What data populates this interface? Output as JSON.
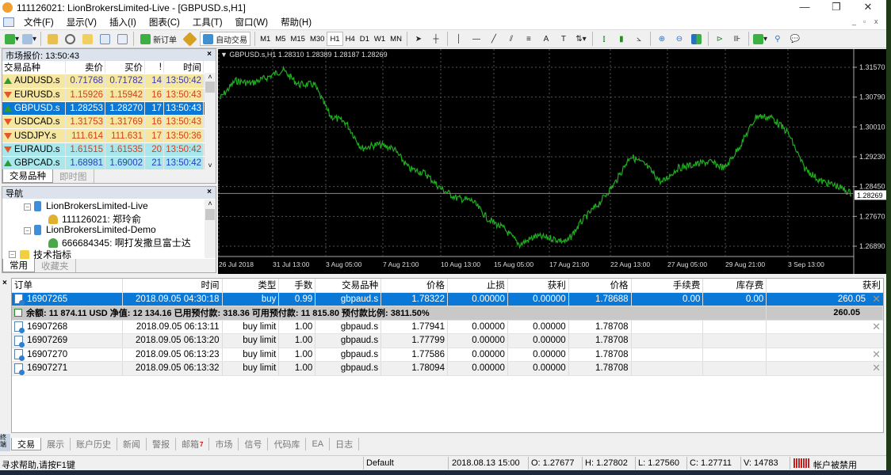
{
  "window": {
    "title": "111126021: LionBrokersLimited-Live - [GBPUSD.s,H1]",
    "controls": [
      "—",
      "❐",
      "✕"
    ]
  },
  "menu": [
    "文件(F)",
    "显示(V)",
    "插入(I)",
    "图表(C)",
    "工具(T)",
    "窗口(W)",
    "帮助(H)"
  ],
  "toolbar": {
    "new_order": "新订单",
    "auto_trading": "自动交易",
    "timeframes": [
      "M1",
      "M5",
      "M15",
      "M30",
      "H1",
      "H4",
      "D1",
      "W1",
      "MN"
    ],
    "active_timeframe": "H1"
  },
  "market_watch": {
    "title": "市场报价: 13:50:43",
    "columns": [
      "交易品种",
      "卖价",
      "买价",
      "!",
      "时间"
    ],
    "rows": [
      {
        "symbol": "AUDUSD.s",
        "bid": "0.71768",
        "ask": "0.71782",
        "spread": "14",
        "time": "13:50:42",
        "dir": "up",
        "bg": "#f5e6a0",
        "color": "#3a3aa8"
      },
      {
        "symbol": "EURUSD.s",
        "bid": "1.15926",
        "ask": "1.15942",
        "spread": "16",
        "time": "13:50:43",
        "dir": "down",
        "bg": "#f5e6a0",
        "color": "#d04020"
      },
      {
        "symbol": "GBPUSD.s",
        "bid": "1.28253",
        "ask": "1.28270",
        "spread": "17",
        "time": "13:50:43",
        "dir": "up",
        "bg": "#0a78d6",
        "color": "#ffffff"
      },
      {
        "symbol": "USDCAD.s",
        "bid": "1.31753",
        "ask": "1.31769",
        "spread": "16",
        "time": "13:50:43",
        "dir": "down",
        "bg": "#f5e6a0",
        "color": "#d04020"
      },
      {
        "symbol": "USDJPY.s",
        "bid": "111.614",
        "ask": "111.631",
        "spread": "17",
        "time": "13:50:36",
        "dir": "down",
        "bg": "#f5e6a0",
        "color": "#d04020"
      },
      {
        "symbol": "EURAUD.s",
        "bid": "1.61515",
        "ask": "1.61535",
        "spread": "20",
        "time": "13:50:42",
        "dir": "down",
        "bg": "#a8e8ec",
        "color": "#d04020"
      },
      {
        "symbol": "GBPCAD.s",
        "bid": "1.68981",
        "ask": "1.69002",
        "spread": "21",
        "time": "13:50:42",
        "dir": "up",
        "bg": "#a8e8ec",
        "color": "#2a3ac0"
      }
    ],
    "tabs": [
      "交易品种",
      "即时图"
    ]
  },
  "navigator": {
    "title": "导航",
    "items": [
      {
        "label": "LionBrokersLimited-Live",
        "type": "server"
      },
      {
        "label": "111126021: 郑玲俞",
        "type": "account"
      },
      {
        "label": "LionBrokersLimited-Demo",
        "type": "server"
      },
      {
        "label": "666684345: 啊打发撒旦富士达",
        "type": "account-demo"
      },
      {
        "label": "技术指标",
        "type": "folder"
      }
    ],
    "tabs": [
      "常用",
      "收藏夹"
    ]
  },
  "chart": {
    "header": "GBPUSD.s,H1  1.28310 1.28389 1.28187 1.28269",
    "current_price": "1.28269",
    "price_labels": [
      "1.31570",
      "1.30790",
      "1.30010",
      "1.29230",
      "1.28450",
      "1.27670",
      "1.26890"
    ],
    "time_labels": [
      "26 Jul 2018",
      "31 Jul 13:00",
      "3 Aug 05:00",
      "7 Aug 21:00",
      "10 Aug 13:00",
      "15 Aug 05:00",
      "17 Aug 21:00",
      "22 Aug 13:00",
      "27 Aug 05:00",
      "29 Aug 21:00",
      "3 Sep 13:00"
    ],
    "line_color": "#1fae1f",
    "price_path": [
      1.3074,
      1.3122,
      1.3115,
      1.313,
      1.315,
      1.3112,
      1.3112,
      1.303,
      1.3012,
      1.2945,
      1.2955,
      1.2945,
      1.2892,
      1.288,
      1.284,
      1.2815,
      1.2808,
      1.276,
      1.2735,
      1.2693,
      1.2715,
      1.271,
      1.27,
      1.2758,
      1.28,
      1.2852,
      1.2925,
      1.29,
      1.2855,
      1.2893,
      1.2902,
      1.291,
      1.2893,
      1.2955,
      1.303,
      1.3025,
      1.2985,
      1.2895,
      1.286,
      1.2848,
      1.2827
    ]
  },
  "terminal": {
    "columns": [
      "订单",
      "时间",
      "类型",
      "手数",
      "交易品种",
      "价格",
      "止损",
      "获利",
      "价格",
      "手续费",
      "库存费",
      "获利"
    ],
    "open": {
      "order": "16907265",
      "time": "2018.09.05 04:30:18",
      "type": "buy",
      "lots": "0.99",
      "symbol": "gbpaud.s",
      "price": "1.78322",
      "sl": "0.00000",
      "tp": "0.00000",
      "cur": "1.78688",
      "commission": "0.00",
      "swap": "0.00",
      "profit": "260.05"
    },
    "summary": {
      "text": "余额: 11 874.11 USD  净值: 12 134.16  已用预付款: 318.36  可用预付款: 11 815.80  预付款比例: 3811.50%",
      "profit": "260.05"
    },
    "pending": [
      {
        "order": "16907268",
        "time": "2018.09.05 06:13:11",
        "type": "buy limit",
        "lots": "1.00",
        "symbol": "gbpaud.s",
        "price": "1.77941",
        "sl": "0.00000",
        "tp": "0.00000",
        "cur": "1.78708",
        "x": true
      },
      {
        "order": "16907269",
        "time": "2018.09.05 06:13:20",
        "type": "buy limit",
        "lots": "1.00",
        "symbol": "gbpaud.s",
        "price": "1.77799",
        "sl": "0.00000",
        "tp": "0.00000",
        "cur": "1.78708",
        "x": false
      },
      {
        "order": "16907270",
        "time": "2018.09.05 06:13:23",
        "type": "buy limit",
        "lots": "1.00",
        "symbol": "gbpaud.s",
        "price": "1.77586",
        "sl": "0.00000",
        "tp": "0.00000",
        "cur": "1.78708",
        "x": true
      },
      {
        "order": "16907271",
        "time": "2018.09.05 06:13:32",
        "type": "buy limit",
        "lots": "1.00",
        "symbol": "gbpaud.s",
        "price": "1.78094",
        "sl": "0.00000",
        "tp": "0.00000",
        "cur": "1.78708",
        "x": true
      }
    ],
    "side_label": "终端",
    "tabs": [
      {
        "label": "交易",
        "active": true
      },
      {
        "label": "展示"
      },
      {
        "label": "账户历史"
      },
      {
        "label": "新闻"
      },
      {
        "label": "警报"
      },
      {
        "label": "邮箱",
        "badge": "7"
      },
      {
        "label": "市场"
      },
      {
        "label": "信号"
      },
      {
        "label": "代码库"
      },
      {
        "label": "EA"
      },
      {
        "label": "日志"
      }
    ]
  },
  "status": {
    "help": "寻求帮助,请按F1键",
    "profile": "Default",
    "datetime": "2018.08.13 15:00",
    "open": "O: 1.27677",
    "high": "H: 1.27802",
    "low": "L: 1.27560",
    "close": "C: 1.27711",
    "volume": "V: 14783",
    "connection": "帐户被禁用"
  }
}
